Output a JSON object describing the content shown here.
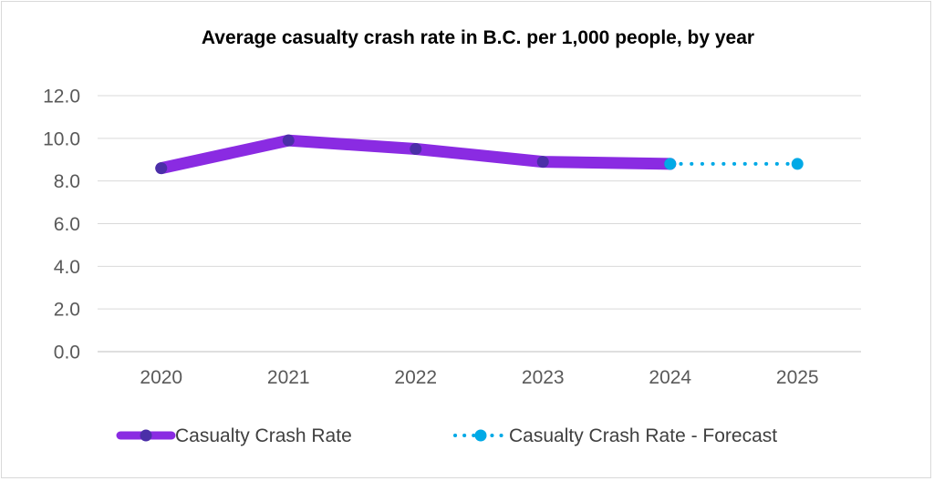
{
  "chart_data": {
    "type": "line",
    "title": "Average casualty crash rate in B.C. per 1,000 people, by year",
    "categories": [
      "2020",
      "2021",
      "2022",
      "2023",
      "2024",
      "2025"
    ],
    "ylim": [
      0,
      12
    ],
    "yticks": [
      "0.0",
      "2.0",
      "4.0",
      "6.0",
      "8.0",
      "10.0",
      "12.0"
    ],
    "grid": true,
    "legend_position": "bottom",
    "series": [
      {
        "name": "Casualty Crash Rate",
        "values": [
          8.6,
          9.9,
          9.5,
          8.9,
          8.8,
          null
        ],
        "line_color": "#8a2be2",
        "marker_color": "#4b2fa8",
        "style": "solid"
      },
      {
        "name": "Casualty Crash Rate - Forecast",
        "values": [
          null,
          null,
          null,
          null,
          8.8,
          8.8
        ],
        "line_color": "#00a9e6",
        "marker_color": "#00a9e6",
        "style": "dotted"
      }
    ]
  }
}
